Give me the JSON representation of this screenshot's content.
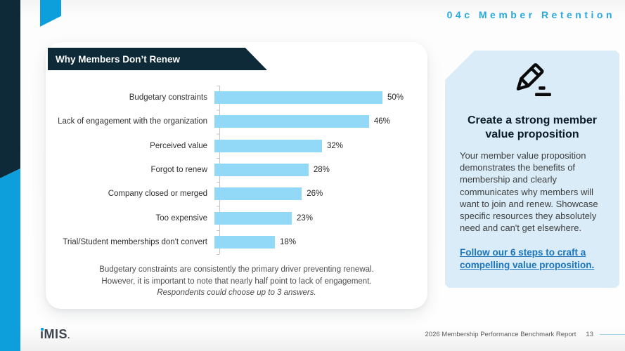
{
  "header": {
    "section_label": "04c Member Retention"
  },
  "chart_card": {
    "banner_title": "Why Members Don’t Renew",
    "footnote_line1": "Budgetary constraints are consistently the primary driver preventing renewal.",
    "footnote_line2": "However, it is important to note that nearly half point to lack of engagement.",
    "footnote_line3": "Respondents could choose up to 3 answers."
  },
  "chart_data": {
    "type": "bar",
    "orientation": "horizontal",
    "title": "Why Members Don’t Renew",
    "categories": [
      "Budgetary constraints",
      "Lack of engagement with the organization",
      "Perceived value",
      "Forgot to renew",
      "Company closed or merged",
      "Too expensive",
      "Trial/Student memberships don't convert"
    ],
    "values": [
      50,
      46,
      32,
      28,
      26,
      23,
      18
    ],
    "value_labels": [
      "50%",
      "46%",
      "32%",
      "28%",
      "26%",
      "23%",
      "18%"
    ],
    "xlabel": "",
    "ylabel": "",
    "xlim": [
      0,
      52
    ],
    "grid": false,
    "legend": false,
    "bar_color": "#92d8f7"
  },
  "side_panel": {
    "icon": "pencil-edit-icon",
    "heading": "Create a strong member value proposition",
    "body": "Your member value proposition demonstrates the benefits of membership and clearly communicates why members will want to join and renew. Showcase specific resources they absolutely need and can't get elsewhere.",
    "link_text": "Follow our 6 steps to craft a compelling value proposition."
  },
  "footer": {
    "logo_i_stem": "ı",
    "logo_rest": "MIS",
    "logo_period": ".",
    "report_title": "2026 Membership Performance Benchmark Report",
    "page_number": "13"
  },
  "colors": {
    "dark_navy": "#0e2a38",
    "accent_cyan": "#0c9fdb",
    "header_blue": "#29a8df",
    "bar_blue": "#92d8f7",
    "panel_bg": "#d9ecf7",
    "link_blue": "#1b75bc"
  }
}
